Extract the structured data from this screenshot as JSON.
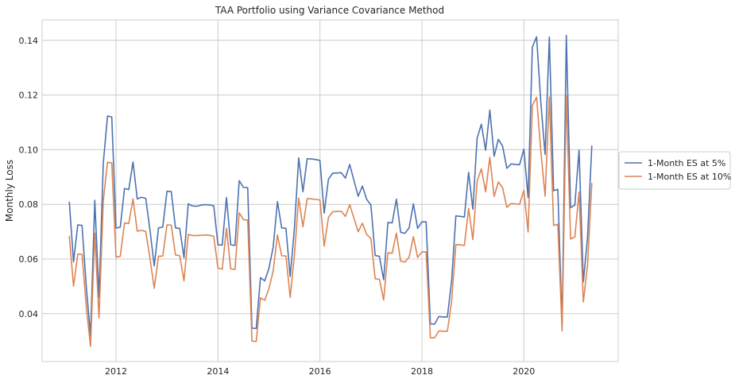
{
  "chart_data": {
    "type": "line",
    "title": "TAA Portfolio using Variance Covariance Method",
    "xlabel": "",
    "ylabel": "Monthly Loss",
    "xlim": [
      2010.55,
      2021.85
    ],
    "ylim": [
      0.0225,
      0.1475
    ],
    "x_ticks": [
      2012,
      2014,
      2016,
      2018,
      2020
    ],
    "y_ticks": [
      0.04,
      0.06,
      0.08,
      0.1,
      0.12,
      0.14
    ],
    "grid": true,
    "legend_position": "right",
    "x_start": 2011.083,
    "x_step": 0.08333,
    "series": [
      {
        "name": "1-Month ES at 5%",
        "color": "#4c72b0",
        "values": [
          0.081,
          0.059,
          0.0725,
          0.0723,
          0.05,
          0.032,
          0.0815,
          0.046,
          0.095,
          0.1123,
          0.112,
          0.0713,
          0.0717,
          0.0858,
          0.0854,
          0.0955,
          0.082,
          0.0826,
          0.0822,
          0.0705,
          0.0575,
          0.0714,
          0.0717,
          0.0848,
          0.0847,
          0.0714,
          0.0712,
          0.0605,
          0.0802,
          0.0794,
          0.0793,
          0.0797,
          0.0799,
          0.0798,
          0.0795,
          0.0652,
          0.0651,
          0.0825,
          0.0652,
          0.065,
          0.0887,
          0.0862,
          0.0861,
          0.0347,
          0.0346,
          0.0532,
          0.052,
          0.0566,
          0.0644,
          0.081,
          0.0714,
          0.0712,
          0.0536,
          0.0714,
          0.097,
          0.0846,
          0.0967,
          0.0966,
          0.0964,
          0.0961,
          0.0768,
          0.0892,
          0.0914,
          0.0915,
          0.0916,
          0.0896,
          0.0946,
          0.0888,
          0.083,
          0.0867,
          0.0818,
          0.0798,
          0.0613,
          0.061,
          0.0524,
          0.0734,
          0.0732,
          0.0819,
          0.0698,
          0.0694,
          0.0714,
          0.0802,
          0.0712,
          0.0736,
          0.0736,
          0.0363,
          0.0362,
          0.039,
          0.0388,
          0.0388,
          0.0521,
          0.0758,
          0.0756,
          0.0754,
          0.0917,
          0.0782,
          0.1042,
          0.1093,
          0.0998,
          0.1145,
          0.0976,
          0.1038,
          0.1013,
          0.0932,
          0.0948,
          0.0946,
          0.0945,
          0.1002,
          0.0825,
          0.1375,
          0.1413,
          0.1172,
          0.0983,
          0.1412,
          0.085,
          0.0855,
          0.0355,
          0.1418,
          0.0788,
          0.0797,
          0.0999,
          0.0516,
          0.0681,
          0.1015
        ]
      },
      {
        "name": "1-Month ES at 10%",
        "color": "#dd8452",
        "values": [
          0.0685,
          0.0501,
          0.0618,
          0.0617,
          0.0427,
          0.028,
          0.0695,
          0.0384,
          0.0813,
          0.0954,
          0.0951,
          0.0607,
          0.061,
          0.0732,
          0.073,
          0.082,
          0.0702,
          0.0705,
          0.0701,
          0.0602,
          0.0493,
          0.061,
          0.0611,
          0.0725,
          0.0724,
          0.0615,
          0.0612,
          0.052,
          0.069,
          0.0686,
          0.0686,
          0.0687,
          0.0688,
          0.0687,
          0.0683,
          0.0567,
          0.0563,
          0.0713,
          0.0564,
          0.0562,
          0.0769,
          0.0744,
          0.0742,
          0.03,
          0.0298,
          0.0458,
          0.0449,
          0.0492,
          0.0557,
          0.0688,
          0.0612,
          0.0611,
          0.046,
          0.0615,
          0.0823,
          0.0718,
          0.0821,
          0.082,
          0.0818,
          0.0816,
          0.0647,
          0.0752,
          0.0773,
          0.0774,
          0.0775,
          0.0756,
          0.0799,
          0.075,
          0.07,
          0.0731,
          0.069,
          0.0675,
          0.0528,
          0.0526,
          0.045,
          0.0623,
          0.0621,
          0.0695,
          0.0592,
          0.0589,
          0.0607,
          0.0682,
          0.0606,
          0.0626,
          0.0626,
          0.0312,
          0.0312,
          0.0337,
          0.0336,
          0.0336,
          0.0446,
          0.0653,
          0.0652,
          0.065,
          0.0785,
          0.0671,
          0.0885,
          0.093,
          0.0846,
          0.0972,
          0.0829,
          0.0882,
          0.0861,
          0.0789,
          0.0803,
          0.0802,
          0.08,
          0.0851,
          0.0699,
          0.1162,
          0.1192,
          0.0994,
          0.083,
          0.1193,
          0.0723,
          0.0727,
          0.0337,
          0.1197,
          0.0673,
          0.0681,
          0.0845,
          0.0443,
          0.058,
          0.0878
        ]
      }
    ]
  }
}
